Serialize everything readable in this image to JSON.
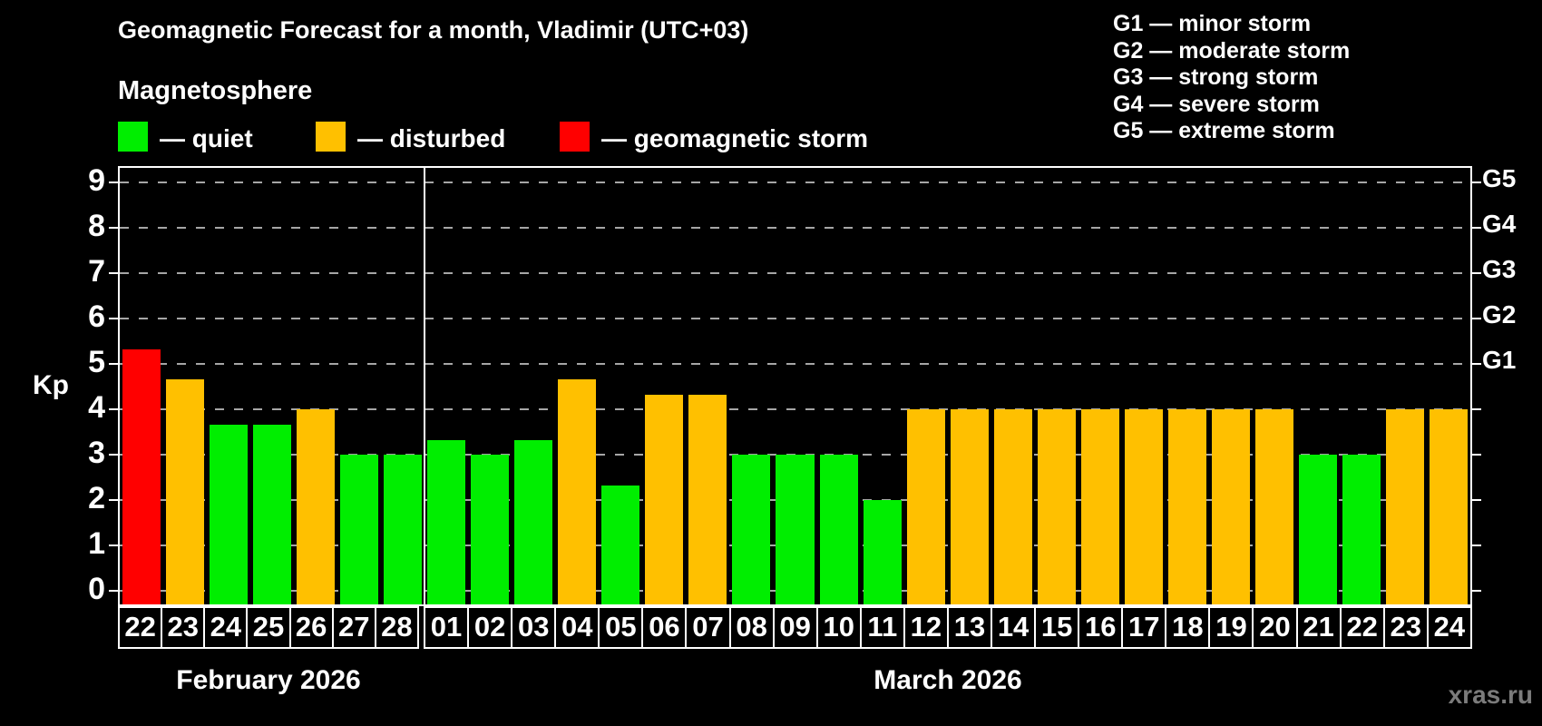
{
  "header": {
    "title": "Geomagnetic Forecast for a month, Vladimir (UTC+03)",
    "subtitle": "Magnetosphere"
  },
  "legend": {
    "items": [
      {
        "status": "quiet",
        "label": "— quiet"
      },
      {
        "status": "disturbed",
        "label": "— disturbed"
      },
      {
        "status": "storm",
        "label": "— geomagnetic storm"
      }
    ]
  },
  "storm_legend": {
    "lines": [
      "G1 — minor storm",
      "G2 — moderate storm",
      "G3 — strong storm",
      "G4 — severe storm",
      "G5 — extreme storm"
    ]
  },
  "axes": {
    "y_label": "Kp",
    "y_ticks": [
      "0",
      "1",
      "2",
      "3",
      "4",
      "5",
      "6",
      "7",
      "8",
      "9"
    ],
    "g_scale": [
      {
        "label": "G1",
        "kp": 5
      },
      {
        "label": "G2",
        "kp": 6
      },
      {
        "label": "G3",
        "kp": 7
      },
      {
        "label": "G4",
        "kp": 8
      },
      {
        "label": "G5",
        "kp": 9
      }
    ]
  },
  "months": [
    {
      "label": "February 2026",
      "days": [
        "22",
        "23",
        "24",
        "25",
        "26",
        "27",
        "28"
      ]
    },
    {
      "label": "March 2026",
      "days": [
        "01",
        "02",
        "03",
        "04",
        "05",
        "06",
        "07",
        "08",
        "09",
        "10",
        "11",
        "12",
        "13",
        "14",
        "15",
        "16",
        "17",
        "18",
        "19",
        "20",
        "21",
        "22",
        "23",
        "24"
      ]
    }
  ],
  "colors": {
    "quiet": "#00ee00",
    "disturbed": "#ffc000",
    "storm": "#ff0000",
    "axis": "#ffffff",
    "grid": "#a6a6a6",
    "background": "#000000",
    "watermark": "#7b7b7b"
  },
  "watermark": "xras.ru",
  "chart_data": {
    "type": "bar",
    "title": "Geomagnetic Forecast for a month, Vladimir (UTC+03)",
    "ylabel": "Kp",
    "ylim": [
      0,
      9
    ],
    "grid": "dashed-horizontal",
    "points": [
      {
        "month": "February 2026",
        "day": "22",
        "kp": 5.33,
        "status": "storm"
      },
      {
        "month": "February 2026",
        "day": "23",
        "kp": 4.67,
        "status": "disturbed"
      },
      {
        "month": "February 2026",
        "day": "24",
        "kp": 3.67,
        "status": "quiet"
      },
      {
        "month": "February 2026",
        "day": "25",
        "kp": 3.67,
        "status": "quiet"
      },
      {
        "month": "February 2026",
        "day": "26",
        "kp": 4.0,
        "status": "disturbed"
      },
      {
        "month": "February 2026",
        "day": "27",
        "kp": 3.0,
        "status": "quiet"
      },
      {
        "month": "February 2026",
        "day": "28",
        "kp": 3.0,
        "status": "quiet"
      },
      {
        "month": "March 2026",
        "day": "01",
        "kp": 3.33,
        "status": "quiet"
      },
      {
        "month": "March 2026",
        "day": "02",
        "kp": 3.0,
        "status": "quiet"
      },
      {
        "month": "March 2026",
        "day": "03",
        "kp": 3.33,
        "status": "quiet"
      },
      {
        "month": "March 2026",
        "day": "04",
        "kp": 4.67,
        "status": "disturbed"
      },
      {
        "month": "March 2026",
        "day": "05",
        "kp": 2.33,
        "status": "quiet"
      },
      {
        "month": "March 2026",
        "day": "06",
        "kp": 4.33,
        "status": "disturbed"
      },
      {
        "month": "March 2026",
        "day": "07",
        "kp": 4.33,
        "status": "disturbed"
      },
      {
        "month": "March 2026",
        "day": "08",
        "kp": 3.0,
        "status": "quiet"
      },
      {
        "month": "March 2026",
        "day": "09",
        "kp": 3.0,
        "status": "quiet"
      },
      {
        "month": "March 2026",
        "day": "10",
        "kp": 3.0,
        "status": "quiet"
      },
      {
        "month": "March 2026",
        "day": "11",
        "kp": 2.0,
        "status": "quiet"
      },
      {
        "month": "March 2026",
        "day": "12",
        "kp": 4.0,
        "status": "disturbed"
      },
      {
        "month": "March 2026",
        "day": "13",
        "kp": 4.0,
        "status": "disturbed"
      },
      {
        "month": "March 2026",
        "day": "14",
        "kp": 4.0,
        "status": "disturbed"
      },
      {
        "month": "March 2026",
        "day": "15",
        "kp": 4.0,
        "status": "disturbed"
      },
      {
        "month": "March 2026",
        "day": "16",
        "kp": 4.0,
        "status": "disturbed"
      },
      {
        "month": "March 2026",
        "day": "17",
        "kp": 4.0,
        "status": "disturbed"
      },
      {
        "month": "March 2026",
        "day": "18",
        "kp": 4.0,
        "status": "disturbed"
      },
      {
        "month": "March 2026",
        "day": "19",
        "kp": 4.0,
        "status": "disturbed"
      },
      {
        "month": "March 2026",
        "day": "20",
        "kp": 4.0,
        "status": "disturbed"
      },
      {
        "month": "March 2026",
        "day": "21",
        "kp": 3.0,
        "status": "quiet"
      },
      {
        "month": "March 2026",
        "day": "22",
        "kp": 3.0,
        "status": "quiet"
      },
      {
        "month": "March 2026",
        "day": "23",
        "kp": 4.0,
        "status": "disturbed"
      },
      {
        "month": "March 2026",
        "day": "24",
        "kp": 4.0,
        "status": "disturbed"
      }
    ]
  }
}
